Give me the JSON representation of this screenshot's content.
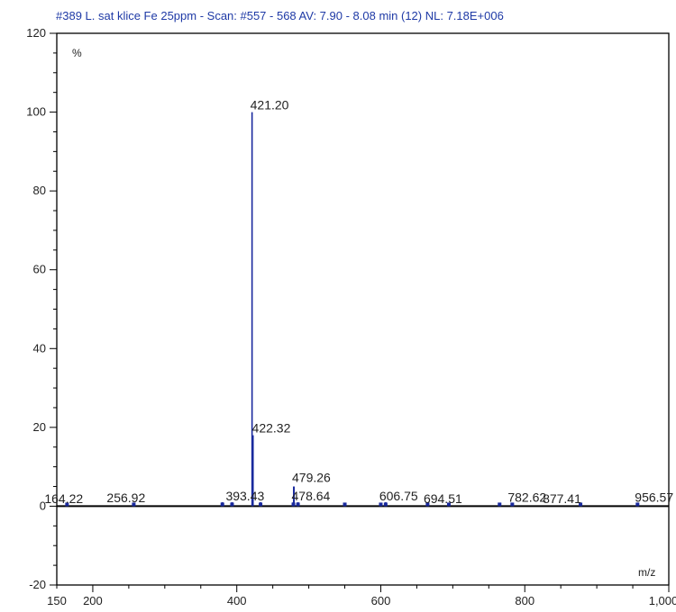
{
  "chart_data": {
    "type": "bar",
    "title": "#389 L. sat klice Fe 25ppm  - Scan: #557 - 568  AV: 7.90 - 8.08 min (12) NL: 7.18E+006",
    "ylabel": "%",
    "xlabel": "m/z",
    "xlim": [
      150,
      1000
    ],
    "ylim": [
      -20,
      120
    ],
    "grid": false,
    "xticks": [
      150,
      200,
      400,
      600,
      800,
      1000
    ],
    "xtick_labels": [
      "150",
      "200",
      "400",
      "600",
      "800",
      "1,000"
    ],
    "yticks": [
      -20,
      0,
      20,
      40,
      60,
      80,
      100,
      120
    ],
    "ytick_labels": [
      "-20",
      "0",
      "20",
      "40",
      "60",
      "80",
      "100",
      "120"
    ],
    "peaks": [
      {
        "mz": 164.22,
        "intensity": 0.3,
        "label": "164.22"
      },
      {
        "mz": 256.92,
        "intensity": 0.5,
        "label": "256.92"
      },
      {
        "mz": 380.0,
        "intensity": 1.0,
        "label": ""
      },
      {
        "mz": 393.43,
        "intensity": 1.0,
        "label": "393.43"
      },
      {
        "mz": 421.2,
        "intensity": 100.0,
        "label": "421.20"
      },
      {
        "mz": 422.32,
        "intensity": 18.0,
        "label": "422.32"
      },
      {
        "mz": 433.0,
        "intensity": 1.0,
        "label": ""
      },
      {
        "mz": 479.26,
        "intensity": 5.0,
        "label": "479.26"
      },
      {
        "mz": 485.0,
        "intensity": 1.0,
        "label": ""
      },
      {
        "mz": 478.64,
        "intensity": 1.0,
        "label": "478.64"
      },
      {
        "mz": 550.0,
        "intensity": 0.4,
        "label": ""
      },
      {
        "mz": 600.0,
        "intensity": 0.7,
        "label": ""
      },
      {
        "mz": 606.75,
        "intensity": 1.0,
        "label": "606.75"
      },
      {
        "mz": 665.0,
        "intensity": 0.9,
        "label": ""
      },
      {
        "mz": 694.51,
        "intensity": 0.3,
        "label": "694.51"
      },
      {
        "mz": 765.0,
        "intensity": 0.4,
        "label": ""
      },
      {
        "mz": 782.62,
        "intensity": 0.7,
        "label": "782.62"
      },
      {
        "mz": 877.41,
        "intensity": 0.3,
        "label": "877.41"
      },
      {
        "mz": 956.57,
        "intensity": 0.7,
        "label": "956.57"
      }
    ],
    "colors": {
      "peaks": "#1a2a9e",
      "axis": "#000000",
      "title": "#1f3aa6"
    }
  }
}
